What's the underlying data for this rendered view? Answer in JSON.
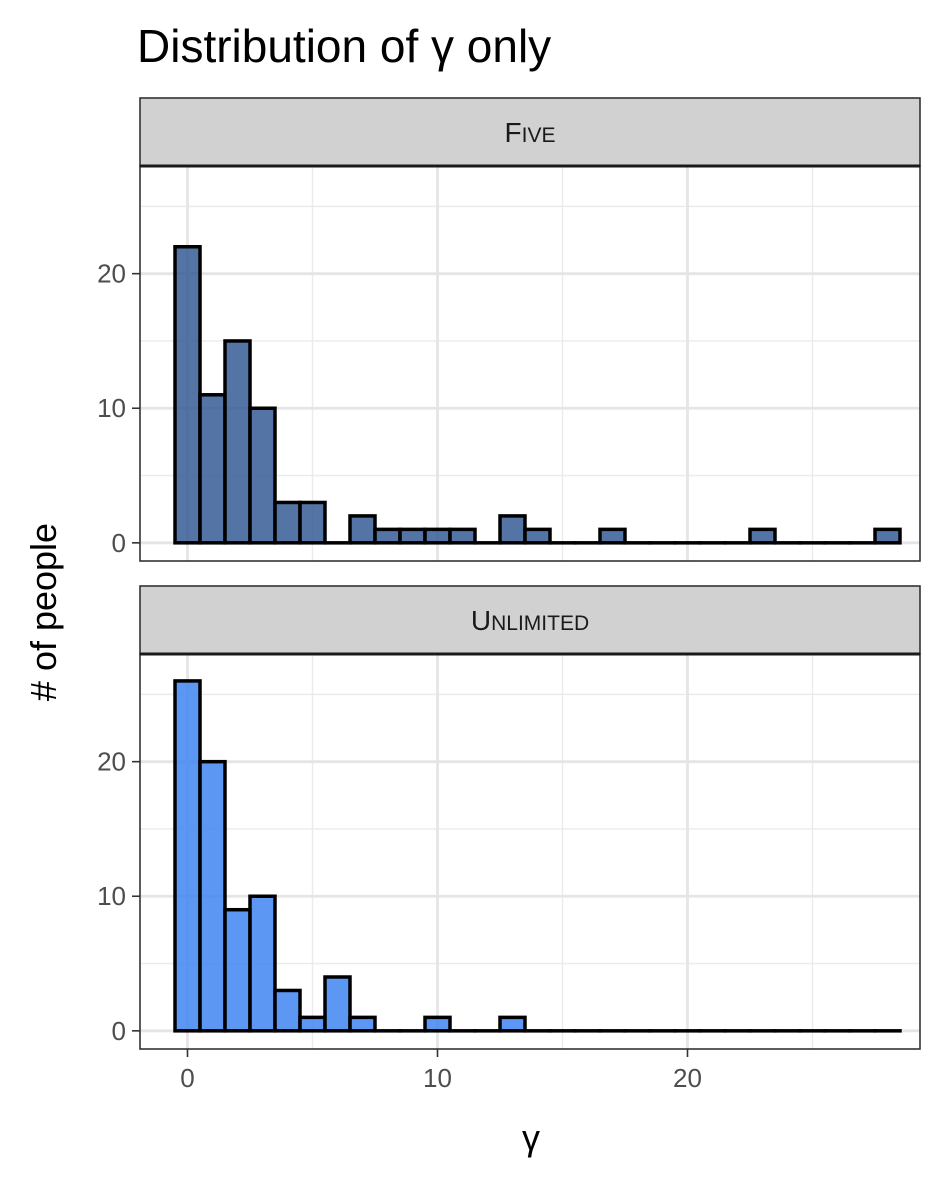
{
  "chart_data": {
    "type": "bar",
    "title": "Distribution of γ only",
    "xlabel": "γ",
    "ylabel": "# of people",
    "xlim": [
      -1.9,
      29.3
    ],
    "ylim": [
      -1.35,
      28
    ],
    "x_ticks": [
      0,
      10,
      20
    ],
    "y_ticks": [
      0,
      10,
      20
    ],
    "grid": true,
    "bin_width": 1,
    "x": [
      0,
      1,
      2,
      3,
      4,
      5,
      6,
      7,
      8,
      9,
      10,
      11,
      12,
      13,
      14,
      15,
      16,
      17,
      18,
      19,
      20,
      21,
      22,
      23,
      24,
      25,
      26,
      27,
      28
    ],
    "panels": [
      {
        "strip": "Five",
        "color": "#365C96",
        "values": [
          22,
          11,
          15,
          10,
          3,
          3,
          0,
          2,
          1,
          1,
          1,
          1,
          0,
          2,
          1,
          0,
          0,
          1,
          0,
          0,
          0,
          0,
          0,
          1,
          0,
          0,
          0,
          0,
          1
        ]
      },
      {
        "strip": "Unlimited",
        "color": "#3F85F2",
        "values": [
          26,
          20,
          9,
          10,
          3,
          1,
          4,
          1,
          0,
          0,
          1,
          0,
          0,
          1,
          0,
          0,
          0,
          0,
          0,
          0,
          0,
          0,
          0,
          0,
          0,
          0,
          0,
          0,
          0
        ]
      }
    ]
  }
}
